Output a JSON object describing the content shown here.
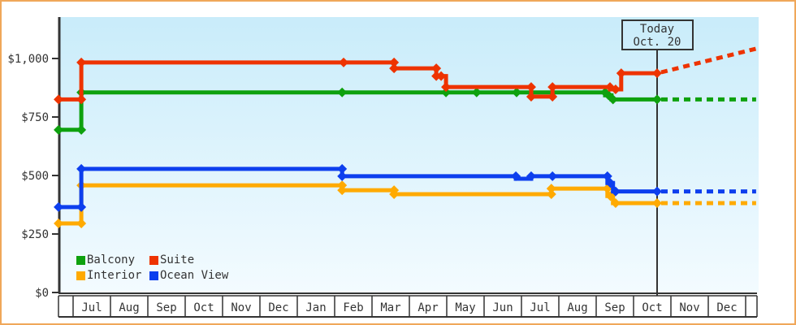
{
  "frame": {
    "border_color": "#f0a75a",
    "plot_bg_top": "#c9ecfa",
    "plot_bg_bottom": "#f3fbff",
    "axis_color": "#333333"
  },
  "chart_data": {
    "type": "line",
    "title": "",
    "description": "Cruise cabin price history by category with dashed forecast after today marker",
    "x_axis": {
      "unit": "months, 0 = first Jul tick",
      "months": [
        "Jul",
        "Aug",
        "Sep",
        "Oct",
        "Nov",
        "Dec",
        "Jan",
        "Feb",
        "Mar",
        "Apr",
        "May",
        "Jun",
        "Jul",
        "Aug",
        "Sep",
        "Oct",
        "Nov",
        "Dec"
      ],
      "range_months": [
        -0.39,
        18.3
      ]
    },
    "y_axis": {
      "ticks": [
        {
          "label": "$1,000",
          "value": 1000
        },
        {
          "label": "$750",
          "value": 750
        },
        {
          "label": "$500",
          "value": 500
        },
        {
          "label": "$250",
          "value": 250
        },
        {
          "label": "$0",
          "value": 0
        }
      ],
      "min": 0,
      "max": 1170
    },
    "today": {
      "line1": "Today",
      "line2": "Oct. 20",
      "position_months": 15.63
    },
    "grid": false,
    "legend_position": "inside-bottom-left",
    "series": [
      {
        "name": "Balcony",
        "color": "#0ea10e",
        "steps": [
          [
            -0.39,
            695
          ],
          [
            0.22,
            695
          ],
          [
            0.22,
            855
          ],
          [
            14.24,
            855
          ],
          [
            14.24,
            843
          ],
          [
            14.41,
            843
          ],
          [
            14.41,
            825
          ],
          [
            15.63,
            825
          ]
        ],
        "markers": [
          [
            -0.39,
            695
          ],
          [
            0.22,
            695
          ],
          [
            0.22,
            855
          ],
          [
            7.2,
            855
          ],
          [
            9.98,
            855
          ],
          [
            10.8,
            855
          ],
          [
            11.87,
            855
          ],
          [
            14.24,
            855
          ],
          [
            14.33,
            843
          ],
          [
            14.45,
            825
          ],
          [
            15.63,
            825
          ]
        ],
        "projection": [
          [
            15.74,
            825
          ],
          [
            18.28,
            825
          ]
        ]
      },
      {
        "name": "Suite",
        "color": "#ee3300",
        "steps": [
          [
            -0.39,
            825
          ],
          [
            0.22,
            825
          ],
          [
            0.22,
            983
          ],
          [
            8.59,
            983
          ],
          [
            8.59,
            958
          ],
          [
            9.72,
            958
          ],
          [
            9.72,
            925
          ],
          [
            9.98,
            925
          ],
          [
            9.98,
            878
          ],
          [
            12.26,
            878
          ],
          [
            12.26,
            837
          ],
          [
            12.83,
            837
          ],
          [
            12.83,
            878
          ],
          [
            14.37,
            878
          ],
          [
            14.37,
            868
          ],
          [
            14.67,
            868
          ],
          [
            14.67,
            937
          ],
          [
            15.63,
            937
          ]
        ],
        "markers": [
          [
            -0.39,
            825
          ],
          [
            0.22,
            825
          ],
          [
            0.22,
            983
          ],
          [
            7.24,
            983
          ],
          [
            8.59,
            983
          ],
          [
            8.59,
            958
          ],
          [
            9.72,
            958
          ],
          [
            9.72,
            925
          ],
          [
            9.85,
            925
          ],
          [
            9.98,
            878
          ],
          [
            12.26,
            878
          ],
          [
            12.26,
            837
          ],
          [
            12.83,
            837
          ],
          [
            12.83,
            878
          ],
          [
            14.37,
            878
          ],
          [
            14.52,
            868
          ],
          [
            14.67,
            937
          ],
          [
            15.63,
            937
          ]
        ],
        "projection": [
          [
            15.74,
            941
          ],
          [
            18.28,
            1042
          ]
        ]
      },
      {
        "name": "Interior",
        "color": "#ffaa00",
        "steps": [
          [
            -0.39,
            295
          ],
          [
            0.22,
            295
          ],
          [
            0.22,
            458
          ],
          [
            7.2,
            458
          ],
          [
            7.2,
            437
          ],
          [
            8.59,
            437
          ],
          [
            8.59,
            420
          ],
          [
            12.8,
            420
          ],
          [
            12.8,
            444
          ],
          [
            14.3,
            444
          ],
          [
            14.3,
            412
          ],
          [
            14.45,
            412
          ],
          [
            14.45,
            382
          ],
          [
            15.63,
            382
          ]
        ],
        "markers": [
          [
            -0.39,
            295
          ],
          [
            0.22,
            295
          ],
          [
            0.22,
            458
          ],
          [
            7.2,
            458
          ],
          [
            7.2,
            437
          ],
          [
            8.59,
            437
          ],
          [
            8.59,
            420
          ],
          [
            12.8,
            420
          ],
          [
            12.8,
            444
          ],
          [
            14.3,
            444
          ],
          [
            14.38,
            412
          ],
          [
            14.52,
            382
          ],
          [
            15.63,
            382
          ]
        ],
        "projection": [
          [
            15.74,
            382
          ],
          [
            18.28,
            382
          ]
        ]
      },
      {
        "name": "Ocean View",
        "color": "#0d3fee",
        "steps": [
          [
            -0.39,
            365
          ],
          [
            0.22,
            365
          ],
          [
            0.22,
            528
          ],
          [
            7.2,
            528
          ],
          [
            7.2,
            497
          ],
          [
            11.85,
            497
          ],
          [
            11.85,
            486
          ],
          [
            12.26,
            486
          ],
          [
            12.26,
            497
          ],
          [
            14.3,
            497
          ],
          [
            14.3,
            468
          ],
          [
            14.45,
            468
          ],
          [
            14.45,
            432
          ],
          [
            15.63,
            432
          ]
        ],
        "markers": [
          [
            -0.39,
            365
          ],
          [
            0.22,
            365
          ],
          [
            0.22,
            528
          ],
          [
            7.2,
            528
          ],
          [
            7.2,
            497
          ],
          [
            11.85,
            497
          ],
          [
            12.26,
            497
          ],
          [
            12.83,
            497
          ],
          [
            14.3,
            497
          ],
          [
            14.38,
            468
          ],
          [
            14.52,
            432
          ],
          [
            15.63,
            432
          ]
        ],
        "projection": [
          [
            15.74,
            432
          ],
          [
            18.28,
            432
          ]
        ]
      }
    ],
    "draw_order": [
      2,
      3,
      0,
      1
    ]
  }
}
